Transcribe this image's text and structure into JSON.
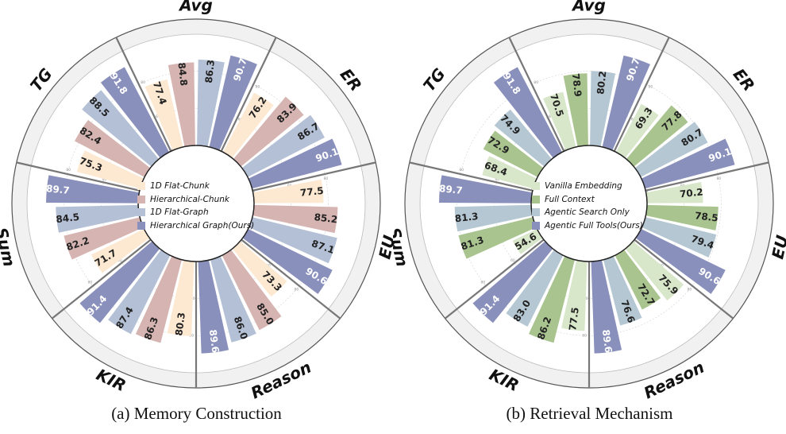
{
  "captions": {
    "a": "(a) Memory Construction",
    "b": "(b) Retrieval Mechanism"
  },
  "chart_data": [
    {
      "type": "bar",
      "subtype": "radial-grouped-bar",
      "categories": [
        "Avg",
        "ER",
        "EU",
        "Reason",
        "KIR",
        "Sum",
        "TG"
      ],
      "rlim": [
        40,
        100
      ],
      "radial_ticks": [
        "40",
        "60",
        "80"
      ],
      "grid": true,
      "legend_position": "center",
      "series": [
        {
          "name": "1D Flat-Chunk",
          "color": "#fde9d2",
          "values": [
            77.4,
            76.2,
            77.5,
            73.3,
            80.3,
            71.7,
            75.3
          ]
        },
        {
          "name": "Hierarchical-Chunk",
          "color": "#d5b4b1",
          "values": [
            84.8,
            83.9,
            85.2,
            85.0,
            86.3,
            82.2,
            82.4
          ]
        },
        {
          "name": "1D Flat-Graph",
          "color": "#b4c0d5",
          "values": [
            86.3,
            86.7,
            87.1,
            86.0,
            87.4,
            84.5,
            88.5
          ]
        },
        {
          "name": "Hierarchical Graph(Ours)",
          "color": "#8a90bc",
          "values": [
            90.7,
            90.1,
            90.6,
            89.6,
            91.4,
            89.7,
            91.8
          ]
        }
      ]
    },
    {
      "type": "bar",
      "subtype": "radial-grouped-bar",
      "categories": [
        "Avg",
        "ER",
        "EU",
        "Reason",
        "KIR",
        "Sum",
        "TG"
      ],
      "rlim": [
        40,
        100
      ],
      "radial_ticks": [
        "40",
        "60",
        "80"
      ],
      "grid": true,
      "legend_position": "center",
      "series": [
        {
          "name": "Vanilla Embedding",
          "color": "#d8e6c9",
          "values": [
            70.5,
            69.3,
            70.2,
            75.9,
            77.5,
            54.6,
            68.4
          ]
        },
        {
          "name": "Full Context",
          "color": "#a9c48f",
          "values": [
            78.9,
            77.8,
            78.5,
            72.7,
            86.2,
            81.3,
            72.9
          ]
        },
        {
          "name": "Agentic Search Only",
          "color": "#b4c7d2",
          "values": [
            80.2,
            80.7,
            79.4,
            76.6,
            83.0,
            81.3,
            74.9
          ]
        },
        {
          "name": "Agentic Full Tools(Ours)",
          "color": "#8a90bc",
          "values": [
            90.7,
            90.1,
            90.6,
            89.6,
            91.4,
            89.7,
            91.8
          ]
        }
      ]
    }
  ]
}
